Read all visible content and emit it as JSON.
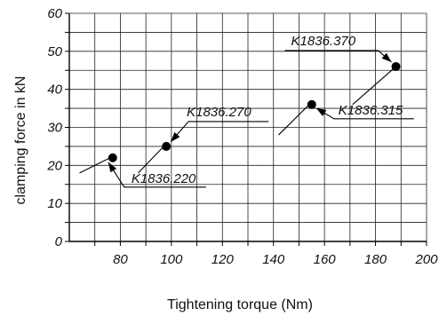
{
  "chart_data": {
    "type": "scatter",
    "title": "",
    "xlabel": "Tightening torque (Nm)",
    "ylabel": "clamping force in kN",
    "xlim": [
      60,
      200
    ],
    "ylim": [
      0,
      60
    ],
    "x_ticks": [
      80,
      100,
      120,
      140,
      160,
      180,
      200
    ],
    "y_ticks": [
      0,
      10,
      20,
      30,
      40,
      50,
      60
    ],
    "grid": true,
    "points": [
      {
        "label": "K1836.220",
        "x": 77,
        "y": 22
      },
      {
        "label": "K1836.270",
        "x": 98,
        "y": 25
      },
      {
        "label": "K1836.315",
        "x": 155,
        "y": 36
      },
      {
        "label": "K1836.370",
        "x": 188,
        "y": 46
      }
    ],
    "background_lines": [
      {
        "start": [
          64,
          18
        ],
        "end": [
          76,
          22
        ]
      },
      {
        "start": [
          87,
          18
        ],
        "end": [
          97,
          25
        ]
      },
      {
        "start": [
          142,
          28
        ],
        "end": [
          154,
          36
        ]
      },
      {
        "start": [
          171,
          36
        ],
        "end": [
          188,
          46
        ]
      }
    ]
  }
}
